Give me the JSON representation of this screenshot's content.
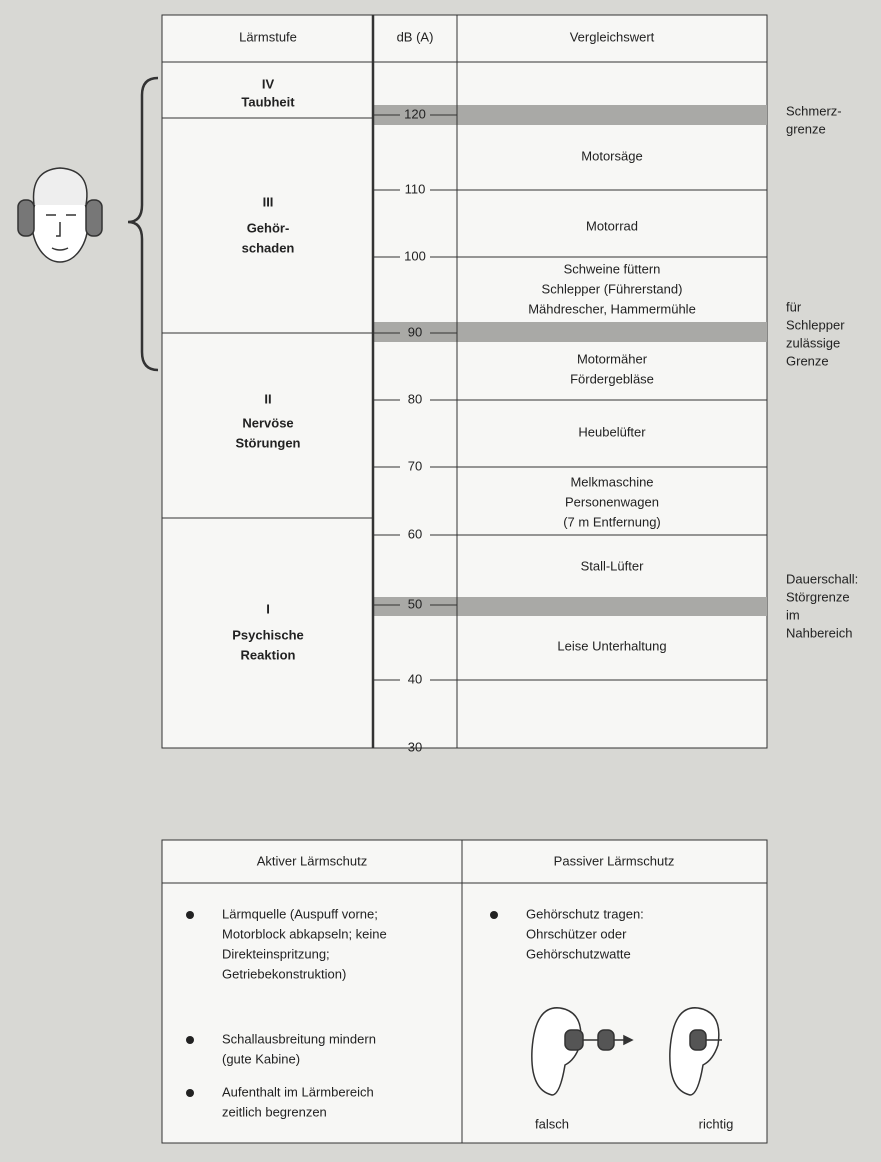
{
  "noise_table": {
    "headers": [
      "Lärmstufe",
      "dB (A)",
      "Vergleichswert"
    ],
    "levels": [
      {
        "numeral": "IV",
        "name": [
          "Taubheit"
        ]
      },
      {
        "numeral": "III",
        "name": [
          "Gehör-",
          "schaden"
        ]
      },
      {
        "numeral": "II",
        "name": [
          "Nervöse",
          "Störungen"
        ]
      },
      {
        "numeral": "I",
        "name": [
          "Psychische",
          "Reaktion"
        ]
      }
    ],
    "db_ticks": [
      120,
      110,
      100,
      90,
      80,
      70,
      60,
      50,
      40,
      30
    ],
    "comparisons": [
      [
        "Motorsäge"
      ],
      [
        "Motorrad"
      ],
      [
        "Schweine füttern",
        "Schlepper (Führerstand)",
        "Mähdrescher, Hammermühle"
      ],
      [
        "Motormäher",
        "Fördergebläse"
      ],
      [
        "Heubelüfter"
      ],
      [
        "Melkmaschine",
        "Personenwagen",
        "(7 m Entfernung)"
      ],
      [
        "Stall-Lüfter"
      ],
      [
        "Leise Unterhaltung"
      ]
    ],
    "notes": [
      [
        "Schmerz-",
        "grenze"
      ],
      [
        "für",
        "Schlepper",
        "zulässige",
        "Grenze"
      ],
      [
        "Dauerschall:",
        "Störgrenze",
        "im",
        "Nahbereich"
      ]
    ]
  },
  "protection_table": {
    "headers": [
      "Aktiver Lärmschutz",
      "Passiver Lärmschutz"
    ],
    "active": [
      [
        "Lärmquelle (Auspuff vorne;",
        "Motorblock abkapseln; keine",
        "Direkteinspritzung;",
        "Getriebekonstruktion)"
      ],
      [
        "Schallausbreitung mindern",
        "(gute Kabine)"
      ],
      [
        "Aufenthalt im Lärmbereich",
        "zeitlich begrenzen"
      ]
    ],
    "passive": [
      [
        "Gehörschutz tragen:",
        "Ohrschützer oder",
        "Gehörschutzwatte"
      ]
    ],
    "ear_labels": [
      "falsch",
      "richtig"
    ]
  }
}
